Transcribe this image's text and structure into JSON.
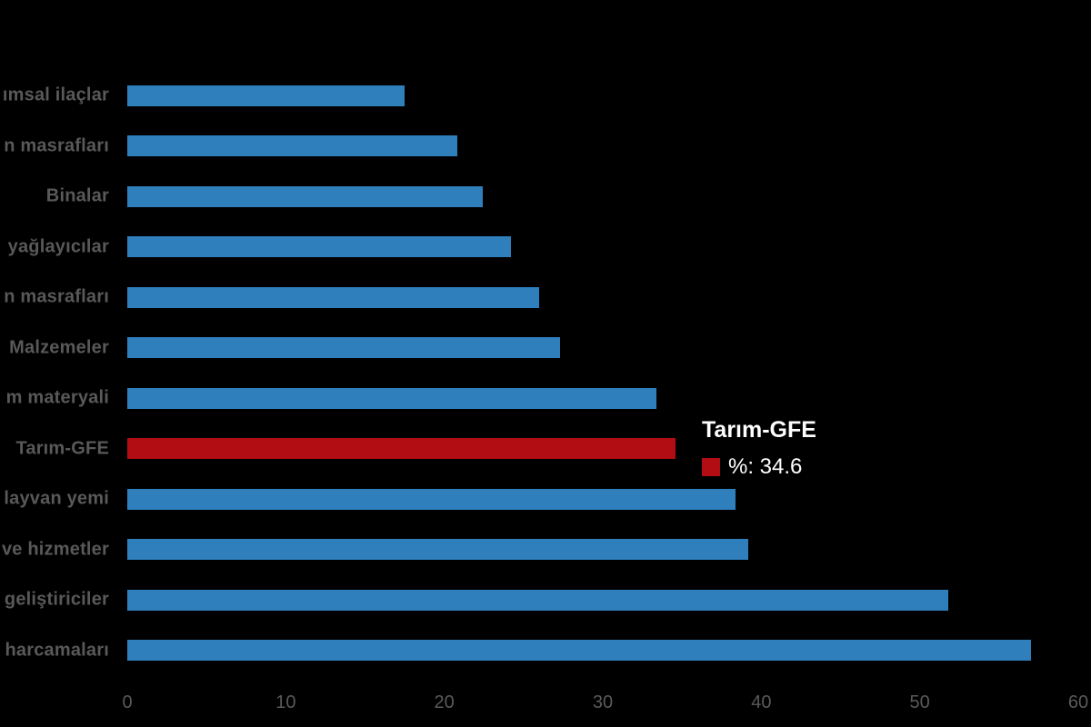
{
  "colors": {
    "background": "#000000",
    "bar": "#2f7fbd",
    "highlight": "#b20d12",
    "label": "#595959",
    "tick": "#5a5a5a",
    "tooltip_bg": "#000000",
    "tooltip_text": "#ffffff"
  },
  "chart_data": {
    "type": "bar",
    "orientation": "horizontal",
    "title": "",
    "xlabel": "",
    "ylabel": "",
    "categories": [
      "ımsal ilaçlar",
      "n masrafları",
      "Binalar",
      "yağlayıcılar",
      "n masrafları",
      "Malzemeler",
      "m materyali",
      "Tarım-GFE",
      "layvan yemi",
      "ve hizmetler",
      "geliştiriciler",
      "harcamaları"
    ],
    "values": [
      17.5,
      20.8,
      22.4,
      24.2,
      26.0,
      27.3,
      33.4,
      34.6,
      38.4,
      39.2,
      51.8,
      57.0
    ],
    "highlight_index": 7,
    "highlight_category": "Tarım-GFE",
    "unit": "%",
    "xlim": [
      0,
      60
    ],
    "x_ticks": [
      "0",
      "10",
      "20",
      "30",
      "40",
      "50",
      "60"
    ],
    "grid": false,
    "legend": false
  },
  "tooltip": {
    "title": "Tarım-GFE",
    "value_label": "%: 34.6"
  }
}
